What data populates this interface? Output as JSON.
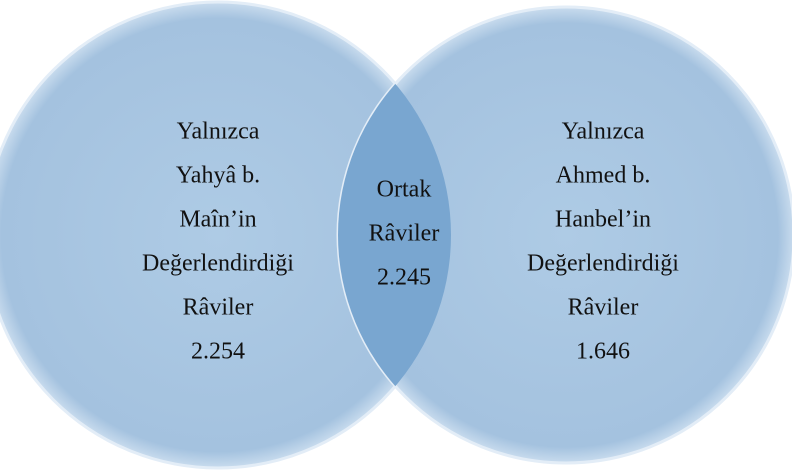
{
  "sets": [
    {
      "lines": [
        "Yalnızca",
        "Yahyâ b.",
        "Maîn’in",
        "Değerlendirdiği",
        "Râviler",
        "2.254"
      ]
    },
    {
      "lines": [
        "Yalnızca",
        "Ahmed b.",
        "Hanbel’in",
        "Değerlendirdiği",
        "Râviler",
        "1.646"
      ]
    }
  ],
  "intersection": {
    "lines": [
      "Ortak",
      "Râviler",
      "2.245"
    ]
  }
}
